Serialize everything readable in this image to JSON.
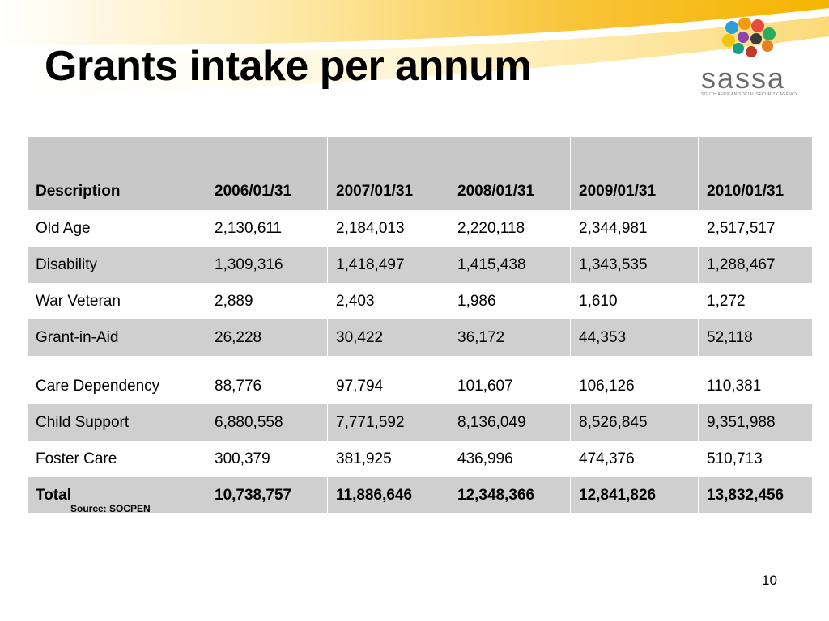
{
  "slide": {
    "title": "Grants intake per annum",
    "source": "Source: SOCPEN",
    "page_number": "10"
  },
  "logo": {
    "word": "sassa",
    "tagline": "SOUTH AFRICAN SOCIAL SECURITY AGENCY"
  },
  "colors": {
    "swoosh": "#f5b400",
    "header_bg": "#c8c8c8",
    "row_shade": "#cfcfcf"
  },
  "table": {
    "headers": [
      "Description",
      "2006/01/31",
      "2007/01/31",
      "2008/01/31",
      "2009/01/31",
      "2010/01/31"
    ],
    "rows": [
      [
        "Old Age",
        "2,130,611",
        "2,184,013",
        "2,220,118",
        "2,344,981",
        "2,517,517"
      ],
      [
        "Disability",
        "1,309,316",
        "1,418,497",
        "1,415,438",
        "1,343,535",
        "1,288,467"
      ],
      [
        "War Veteran",
        "2,889",
        "2,403",
        "1,986",
        "1,610",
        "1,272"
      ],
      [
        "Grant-in-Aid",
        "26,228",
        "30,422",
        "36,172",
        "44,353",
        "52,118"
      ],
      [
        "Care Dependency",
        "88,776",
        "97,794",
        "101,607",
        "106,126",
        "110,381"
      ],
      [
        "Child Support",
        "6,880,558",
        "7,771,592",
        "8,136,049",
        "8,526,845",
        "9,351,988"
      ],
      [
        "Foster Care",
        "300,379",
        "381,925",
        "436,996",
        "474,376",
        "510,713"
      ]
    ],
    "total": [
      "Total",
      "10,738,757",
      "11,886,646",
      "12,348,366",
      "12,841,826",
      "13,832,456"
    ]
  }
}
